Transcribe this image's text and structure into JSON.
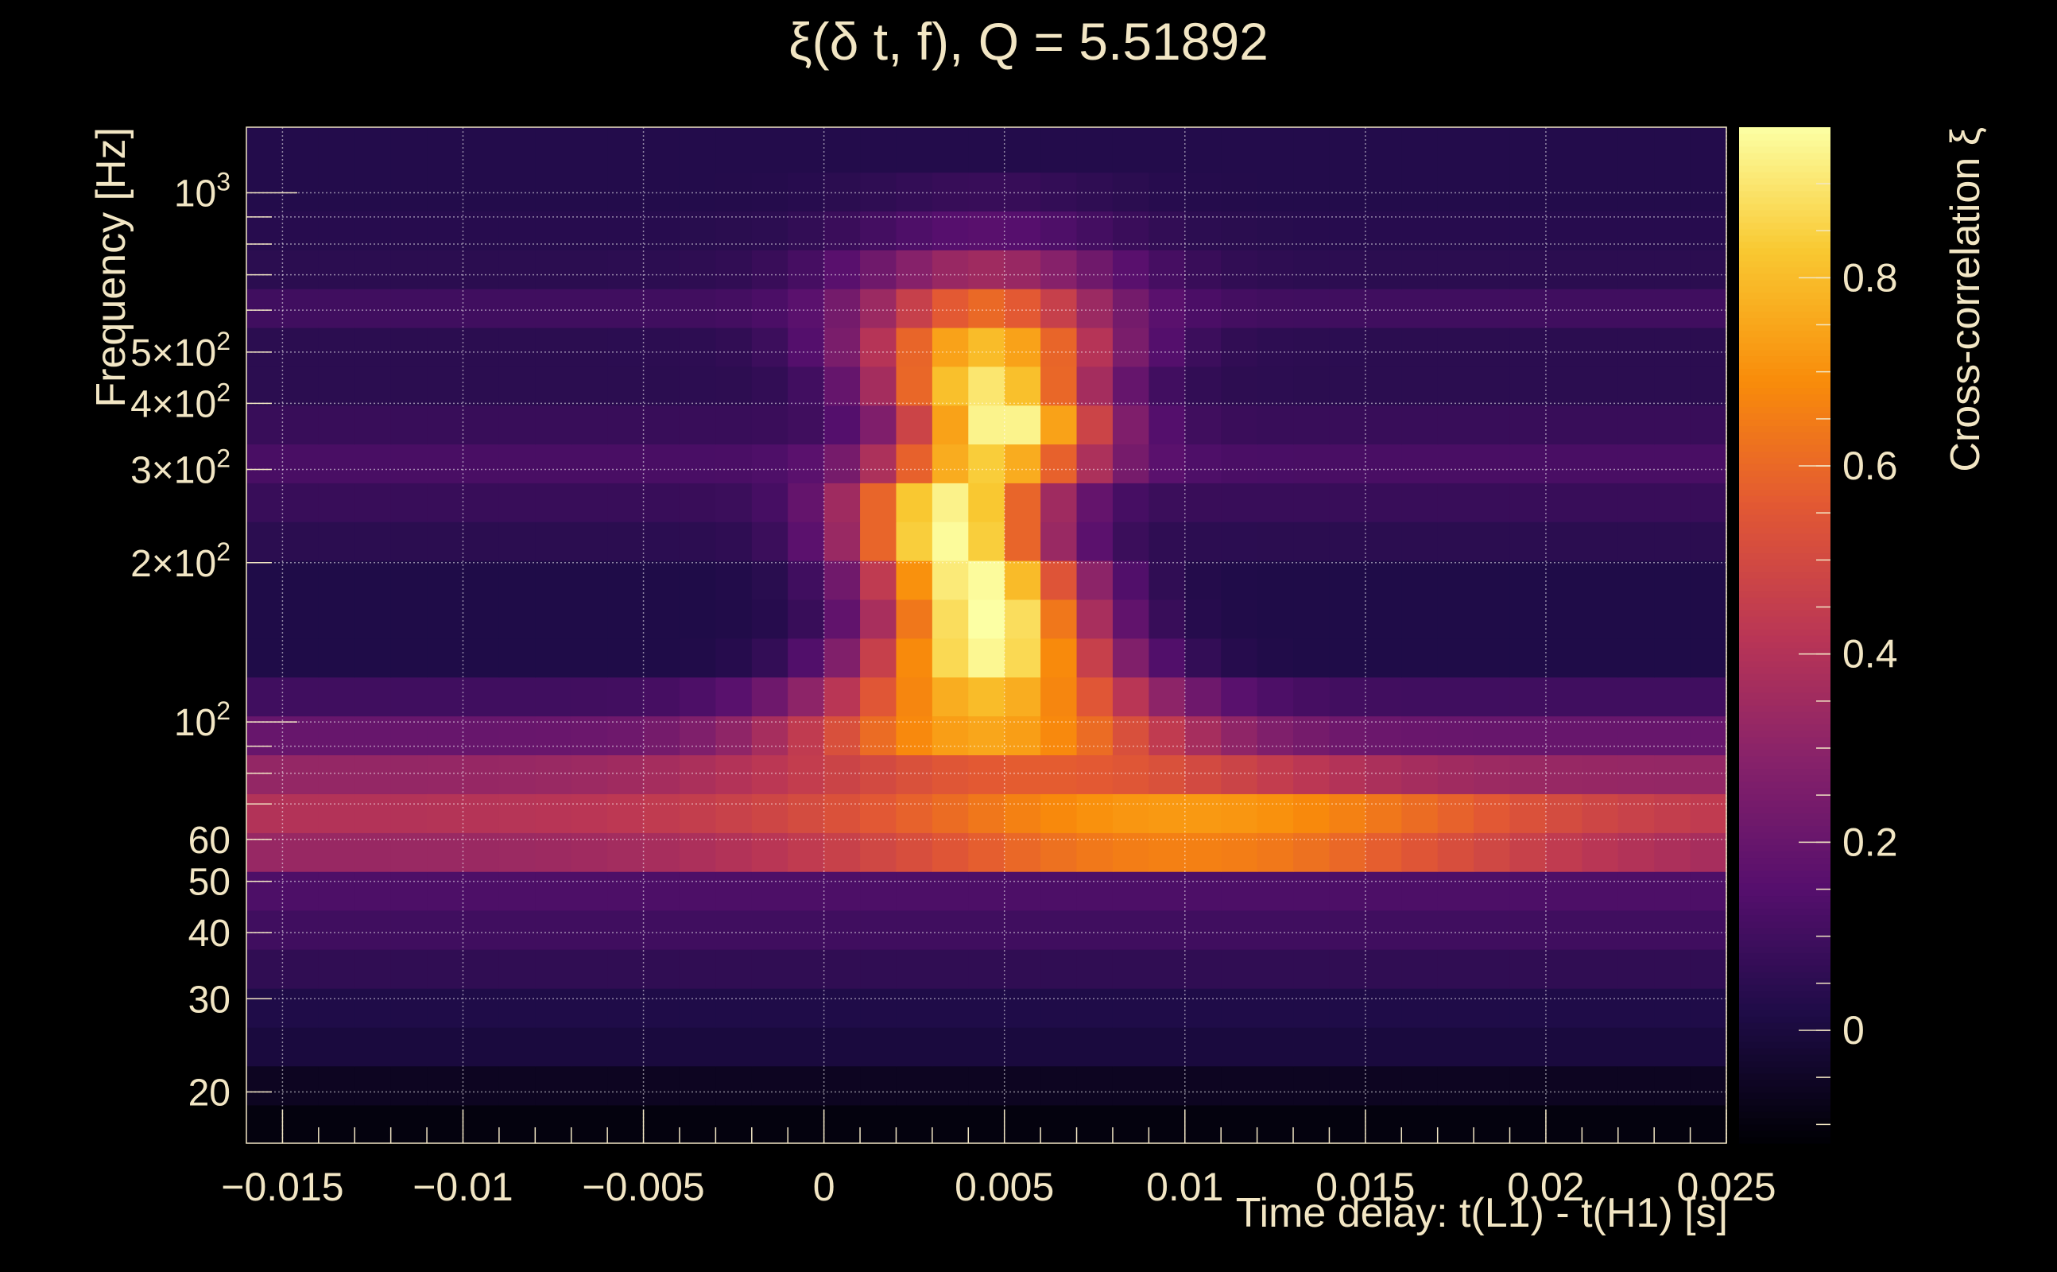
{
  "chart_data": {
    "type": "heatmap",
    "title": "ξ(δ t, f), Q = 5.51892",
    "xlabel": "Time delay: t(L1) - t(H1) [s]",
    "ylabel": "Frequency [Hz]",
    "colorbar_label": "Cross-correlation ξ",
    "x_scale": "linear",
    "y_scale": "log",
    "xlim": [
      -0.016,
      0.025
    ],
    "ylim": [
      16,
      1330
    ],
    "zlim": [
      -0.12,
      0.96
    ],
    "grid": true,
    "colormap": "inferno",
    "x_ticks": [
      {
        "value": -0.015,
        "label": "−0.015"
      },
      {
        "value": -0.01,
        "label": "−0.01"
      },
      {
        "value": -0.005,
        "label": "−0.005"
      },
      {
        "value": 0,
        "label": "0"
      },
      {
        "value": 0.005,
        "label": "0.005"
      },
      {
        "value": 0.01,
        "label": "0.01"
      },
      {
        "value": 0.015,
        "label": "0.015"
      },
      {
        "value": 0.02,
        "label": "0.02"
      },
      {
        "value": 0.025,
        "label": "0.025"
      }
    ],
    "y_ticks": [
      {
        "value": 20,
        "label": "20"
      },
      {
        "value": 30,
        "label": "30"
      },
      {
        "value": 40,
        "label": "40"
      },
      {
        "value": 50,
        "label": "50"
      },
      {
        "value": 60,
        "label": "60"
      },
      {
        "value": 100,
        "label": "10",
        "sup": "2"
      },
      {
        "value": 200,
        "label": "2×10",
        "sup": "2"
      },
      {
        "value": 300,
        "label": "3×10",
        "sup": "2"
      },
      {
        "value": 400,
        "label": "4×10",
        "sup": "2"
      },
      {
        "value": 500,
        "label": "5×10",
        "sup": "2"
      },
      {
        "value": 1000,
        "label": "10",
        "sup": "3"
      }
    ],
    "colorbar_ticks": [
      {
        "value": 0,
        "label": "0"
      },
      {
        "value": 0.2,
        "label": "0.2"
      },
      {
        "value": 0.4,
        "label": "0.4"
      },
      {
        "value": 0.6,
        "label": "0.6"
      },
      {
        "value": 0.8,
        "label": "0.8"
      }
    ],
    "cells": {
      "x_start": -0.016,
      "x_step": 0.001,
      "columns": 41,
      "rows": [
        {
          "f_low": 16.0,
          "f_high": 18.9,
          "base": -0.1,
          "peak": 0.0,
          "center": 0.0045,
          "width": 0.01
        },
        {
          "f_low": 18.9,
          "f_high": 22.4,
          "base": -0.06,
          "peak": 0.0,
          "center": 0.0045,
          "width": 0.01
        },
        {
          "f_low": 22.4,
          "f_high": 26.5,
          "base": 0.0,
          "peak": 0.0,
          "center": 0.0045,
          "width": 0.01
        },
        {
          "f_low": 26.5,
          "f_high": 31.4,
          "base": 0.02,
          "peak": 0.0,
          "center": 0.0045,
          "width": 0.01
        },
        {
          "f_low": 31.4,
          "f_high": 37.2,
          "base": 0.06,
          "peak": 0.0,
          "center": 0.0045,
          "width": 0.01
        },
        {
          "f_low": 37.2,
          "f_high": 44.1,
          "base": 0.1,
          "peak": 0.0,
          "center": 0.0045,
          "width": 0.01
        },
        {
          "f_low": 44.1,
          "f_high": 52.2,
          "base": 0.13,
          "peak": 0.0,
          "center": 0.0045,
          "width": 0.01
        },
        {
          "f_low": 52.2,
          "f_high": 61.8,
          "base": 0.33,
          "peak": 0.33,
          "center": 0.01,
          "width": 0.01
        },
        {
          "f_low": 61.8,
          "f_high": 73.2,
          "base": 0.4,
          "peak": 0.32,
          "center": 0.01,
          "width": 0.01
        },
        {
          "f_low": 73.2,
          "f_high": 86.7,
          "base": 0.32,
          "peak": 0.25,
          "center": 0.006,
          "width": 0.008
        },
        {
          "f_low": 86.7,
          "f_high": 102.7,
          "base": 0.2,
          "peak": 0.55,
          "center": 0.0045,
          "width": 0.0055
        },
        {
          "f_low": 102.7,
          "f_high": 121.6,
          "base": 0.1,
          "peak": 0.7,
          "center": 0.0045,
          "width": 0.0045
        },
        {
          "f_low": 121.6,
          "f_high": 144.0,
          "base": 0.02,
          "peak": 0.92,
          "center": 0.0045,
          "width": 0.0035
        },
        {
          "f_low": 144.0,
          "f_high": 170.5,
          "base": 0.02,
          "peak": 0.96,
          "center": 0.0045,
          "width": 0.003
        },
        {
          "f_low": 170.5,
          "f_high": 201.9,
          "base": 0.02,
          "peak": 0.94,
          "center": 0.0042,
          "width": 0.003
        },
        {
          "f_low": 201.9,
          "f_high": 239.1,
          "base": 0.05,
          "peak": 0.9,
          "center": 0.0035,
          "width": 0.0028
        },
        {
          "f_low": 239.1,
          "f_high": 283.1,
          "base": 0.08,
          "peak": 0.85,
          "center": 0.0035,
          "width": 0.0028
        },
        {
          "f_low": 283.1,
          "f_high": 335.2,
          "base": 0.12,
          "peak": 0.72,
          "center": 0.0045,
          "width": 0.003
        },
        {
          "f_low": 335.2,
          "f_high": 396.9,
          "base": 0.08,
          "peak": 0.88,
          "center": 0.005,
          "width": 0.0028
        },
        {
          "f_low": 396.9,
          "f_high": 469.9,
          "base": 0.05,
          "peak": 0.85,
          "center": 0.0045,
          "width": 0.003
        },
        {
          "f_low": 469.9,
          "f_high": 556.4,
          "base": 0.05,
          "peak": 0.75,
          "center": 0.0045,
          "width": 0.0035
        },
        {
          "f_low": 556.4,
          "f_high": 658.8,
          "base": 0.1,
          "peak": 0.5,
          "center": 0.0045,
          "width": 0.0035
        },
        {
          "f_low": 658.8,
          "f_high": 780.0,
          "base": 0.05,
          "peak": 0.3,
          "center": 0.0045,
          "width": 0.004
        },
        {
          "f_low": 780.0,
          "f_high": 923.6,
          "base": 0.04,
          "peak": 0.12,
          "center": 0.0045,
          "width": 0.004
        },
        {
          "f_low": 923.6,
          "f_high": 1093.6,
          "base": 0.03,
          "peak": 0.05,
          "center": 0.0045,
          "width": 0.004
        },
        {
          "f_low": 1093.6,
          "f_high": 1330.0,
          "base": 0.03,
          "peak": 0.0,
          "center": 0.0045,
          "width": 0.004
        }
      ]
    }
  }
}
